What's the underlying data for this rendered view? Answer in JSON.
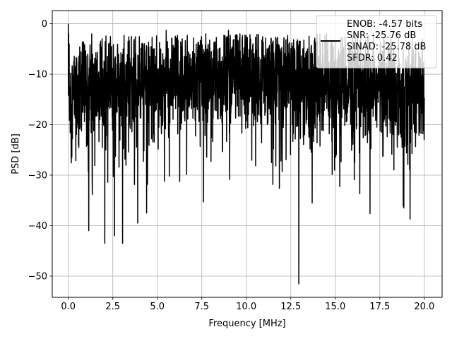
{
  "chart_data": {
    "type": "line",
    "title": "",
    "xlabel": "Frequency [MHz]",
    "ylabel": "PSD [dB]",
    "xlim": [
      -0.9,
      21.0
    ],
    "ylim": [
      -54.2,
      2.6
    ],
    "x_ticks": [
      0.0,
      2.5,
      5.0,
      7.5,
      10.0,
      12.5,
      15.0,
      17.5,
      20.0
    ],
    "x_tick_labels": [
      "0.0",
      "2.5",
      "5.0",
      "7.5",
      "10.0",
      "12.5",
      "15.0",
      "17.5",
      "20.0"
    ],
    "y_ticks": [
      0,
      -10,
      -20,
      -30,
      -40,
      -50
    ],
    "y_tick_labels": [
      "0",
      "−10",
      "−20",
      "−30",
      "−40",
      "−50"
    ],
    "grid": true,
    "legend_position": "top-right",
    "line_color": "#000000",
    "series": [
      {
        "x_range": [
          0.0,
          20.0
        ],
        "summary": "dense noisy power spectral density; main band between about -25 dB and -5 dB, peak near 0 dB at 0 MHz, deepest null about -51.5 dB near 12.95 MHz",
        "peaks": [
          [
            0.0,
            0.0
          ],
          [
            0.02,
            -2.0
          ],
          [
            0.05,
            -4.0
          ],
          [
            5.5,
            -1.3
          ],
          [
            9.1,
            -2.3
          ],
          [
            9.0,
            -1.3
          ]
        ],
        "nulls": [
          [
            1.15,
            -41.0
          ],
          [
            2.05,
            -43.5
          ],
          [
            2.6,
            -42.0
          ],
          [
            3.05,
            -43.5
          ],
          [
            3.9,
            -39.5
          ],
          [
            4.4,
            -37.5
          ],
          [
            7.6,
            -35.3
          ],
          [
            12.95,
            -51.5
          ],
          [
            13.7,
            -35.5
          ],
          [
            16.95,
            -37.6
          ],
          [
            18.85,
            -36.5
          ],
          [
            19.2,
            -38.7
          ]
        ]
      }
    ]
  },
  "legend": {
    "lines": [
      "ENOB: -4.57 bits",
      "SNR: -25.76 dB",
      "SINAD: -25.78 dB",
      "SFDR: 0.42"
    ]
  }
}
